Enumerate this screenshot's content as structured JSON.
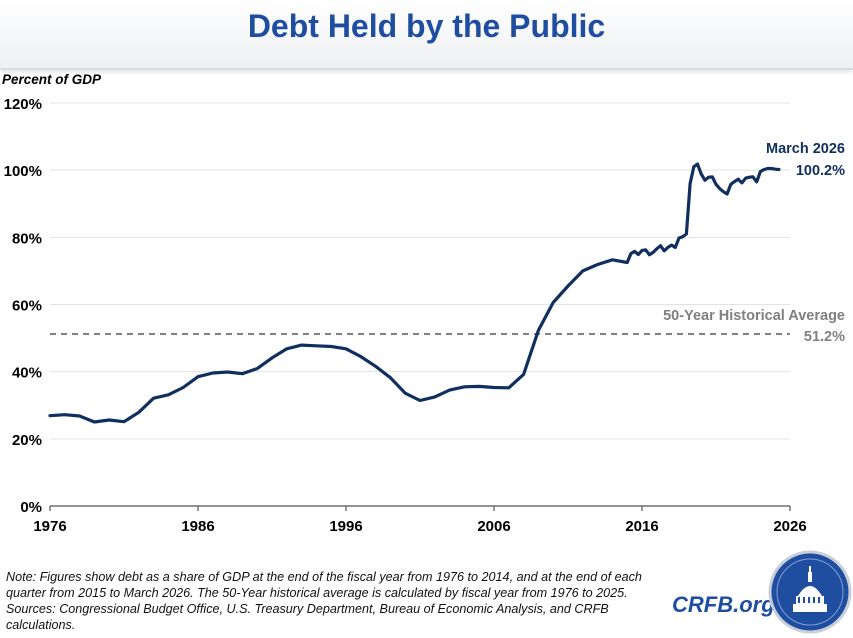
{
  "page": {
    "title": "Debt Held by the Public",
    "footnote": {
      "note": "Note: Figures show debt as a share of GDP at the end of the fiscal year from 1976 to 2014, and at the end of each quarter from 2015 to March 2026. The 50-Year historical average is calculated by fiscal year from 1976 to 2025.",
      "sources": "Sources: Congressional Budget Office, U.S. Treasury Department, Bureau of Economic Analysis, and CRFB calculations."
    },
    "brand": "CRFB.org",
    "colors": {
      "title": "#1f4ea0",
      "series": "#102f5e",
      "average": "#808080",
      "brand": "#1f4ea0"
    }
  },
  "chart_data": {
    "type": "line",
    "title": "Debt Held by the Public",
    "ylabel": "Percent of GDP",
    "xlabel": "",
    "xlim": [
      1976,
      2026
    ],
    "ylim": [
      0,
      120
    ],
    "x_ticks": [
      "1976",
      "1986",
      "1996",
      "2006",
      "2016",
      "2026"
    ],
    "y_ticks": [
      "0%",
      "20%",
      "40%",
      "60%",
      "80%",
      "100%",
      "120%"
    ],
    "grid": "horizontal",
    "series": [
      {
        "x": [
          1976,
          1977,
          1978,
          1979,
          1980,
          1981,
          1982,
          1983,
          1984,
          1985,
          1986,
          1987,
          1988,
          1989,
          1990,
          1991,
          1992,
          1993,
          1994,
          1995,
          1996,
          1997,
          1998,
          1999,
          2000,
          2001,
          2002,
          2003,
          2004,
          2005,
          2006,
          2007,
          2008,
          2009,
          2010,
          2011,
          2012,
          2013,
          2014,
          2015,
          2015.25,
          2015.5,
          2015.75,
          2016,
          2016.25,
          2016.5,
          2016.75,
          2017,
          2017.25,
          2017.5,
          2017.75,
          2018,
          2018.25,
          2018.5,
          2018.75,
          2019,
          2019.25,
          2019.5,
          2019.75,
          2020,
          2020.25,
          2020.5,
          2020.75,
          2021,
          2021.25,
          2021.5,
          2021.75,
          2022,
          2022.25,
          2022.5,
          2022.75,
          2023,
          2023.25,
          2023.5,
          2023.75,
          2024,
          2024.25,
          2024.5,
          2024.75,
          2025,
          2025.25
        ],
        "values": [
          26.9,
          27.2,
          26.8,
          25.0,
          25.6,
          25.1,
          27.9,
          32.1,
          33.1,
          35.3,
          38.5,
          39.6,
          39.9,
          39.4,
          40.9,
          44.1,
          46.8,
          47.9,
          47.7,
          47.5,
          46.8,
          44.5,
          41.6,
          38.2,
          33.6,
          31.4,
          32.5,
          34.5,
          35.5,
          35.6,
          35.3,
          35.2,
          39.2,
          52.3,
          60.6,
          65.5,
          70.0,
          71.9,
          73.3,
          72.5,
          75.2,
          75.8,
          74.9,
          76.1,
          76.3,
          74.8,
          75.5,
          76.6,
          77.5,
          76.0,
          77.0,
          77.7,
          77.0,
          79.8,
          80.2,
          81.0,
          96.0,
          101.0,
          101.8,
          98.9,
          97.0,
          97.9,
          98.0,
          95.8,
          94.5,
          93.6,
          92.9,
          95.8,
          96.6,
          97.3,
          96.2,
          97.6,
          97.9,
          98.0,
          96.5,
          99.6,
          100.2,
          100.5,
          100.5,
          100.3,
          100.2
        ]
      }
    ],
    "reference_line": {
      "label": "50-Year Historical Average",
      "value": 51.2,
      "value_label": "51.2%"
    },
    "end_annotation": {
      "label": "March 2026",
      "value_label": "100.2%"
    }
  }
}
